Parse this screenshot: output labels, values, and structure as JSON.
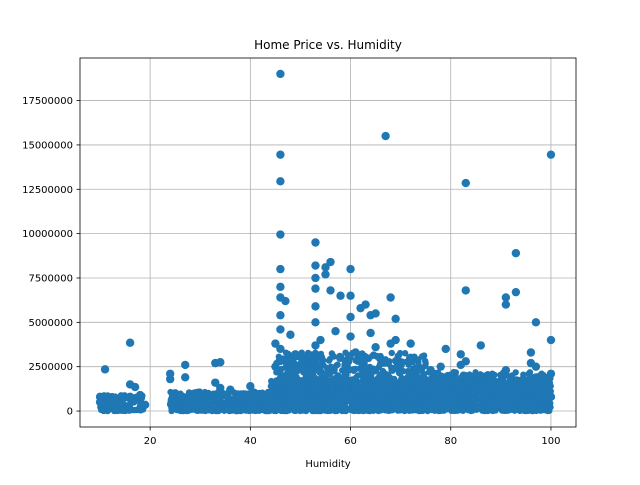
{
  "chart_data": {
    "type": "scatter",
    "title": "Home Price vs. Humidity",
    "xlabel": "Humidity",
    "ylabel": "",
    "xlim": [
      6,
      105
    ],
    "ylim": [
      -900000,
      19900000
    ],
    "xticks": [
      20,
      40,
      60,
      80,
      100
    ],
    "yticks": [
      0,
      2500000,
      5000000,
      7500000,
      10000000,
      12500000,
      15000000,
      17500000
    ],
    "xtick_labels": [
      "20",
      "40",
      "60",
      "80",
      "100"
    ],
    "ytick_labels": [
      "0",
      "2500000",
      "5000000",
      "7500000",
      "10000000",
      "12500000",
      "15000000",
      "17500000"
    ],
    "grid": true,
    "marker_color": "#1f77b4",
    "series": [
      {
        "x": [
          10,
          10,
          11,
          11,
          12,
          13,
          13,
          16,
          16,
          16,
          17,
          18,
          19,
          24,
          24,
          25,
          26,
          27,
          27,
          28,
          29,
          30,
          33,
          33,
          34,
          34,
          35,
          36,
          37,
          38,
          40,
          42,
          44,
          45,
          45,
          46,
          46,
          46,
          46,
          46,
          46,
          46,
          46,
          46,
          46,
          46,
          47,
          47,
          48,
          48,
          49,
          49,
          50,
          51,
          52,
          53,
          53,
          53,
          53,
          53,
          53,
          53,
          54,
          54,
          55,
          55,
          56,
          56,
          57,
          57,
          58,
          58,
          59,
          59,
          60,
          60,
          60,
          60,
          61,
          61,
          62,
          62,
          63,
          63,
          64,
          64,
          65,
          65,
          66,
          67,
          67,
          68,
          68,
          68,
          69,
          69,
          70,
          71,
          72,
          72,
          73,
          74,
          75,
          76,
          77,
          78,
          78,
          79,
          80,
          81,
          82,
          82,
          83,
          83,
          83,
          84,
          84,
          85,
          86,
          86,
          87,
          88,
          89,
          90,
          90,
          91,
          91,
          91,
          92,
          92,
          93,
          93,
          94,
          95,
          96,
          96,
          96,
          97,
          97,
          98,
          99,
          100,
          100,
          100,
          100
        ],
        "y": [
          800000,
          500000,
          2350000,
          400000,
          600000,
          300000,
          550000,
          3850000,
          1500000,
          800000,
          1350000,
          900000,
          350000,
          1800000,
          2100000,
          1000000,
          800000,
          2600000,
          1900000,
          600000,
          1000000,
          500000,
          2700000,
          1600000,
          2750000,
          1300000,
          900000,
          1200000,
          700000,
          600000,
          1400000,
          800000,
          1000000,
          3800000,
          2500000,
          19000000,
          14450000,
          12950000,
          9950000,
          8000000,
          7000000,
          6400000,
          5400000,
          4600000,
          3500000,
          1500000,
          6200000,
          2800000,
          4300000,
          2000000,
          3200000,
          1000000,
          2500000,
          2900000,
          3100000,
          9500000,
          8200000,
          7500000,
          6900000,
          5900000,
          5000000,
          3700000,
          4000000,
          2200000,
          8100000,
          7700000,
          8400000,
          6800000,
          4500000,
          1800000,
          6500000,
          3000000,
          2600000,
          1200000,
          8000000,
          6500000,
          5300000,
          4200000,
          3300000,
          1500000,
          3000000,
          5800000,
          6000000,
          2400000,
          5400000,
          4400000,
          5500000,
          3600000,
          2000000,
          2800000,
          15500000,
          6400000,
          3800000,
          1600000,
          5200000,
          4000000,
          2600000,
          1200000,
          3000000,
          3800000,
          2400000,
          1800000,
          1300000,
          2300000,
          1000000,
          2500000,
          1500000,
          3500000,
          2000000,
          1700000,
          2600000,
          3200000,
          12850000,
          6800000,
          2800000,
          1900000,
          1000000,
          1500000,
          3700000,
          1200000,
          900000,
          1800000,
          1100000,
          1500000,
          700000,
          6400000,
          6000000,
          2300000,
          1700000,
          1000000,
          8900000,
          6700000,
          1500000,
          1300000,
          3300000,
          2700000,
          1500000,
          5000000,
          2500000,
          1200000,
          1800000,
          14450000,
          4000000,
          2100000,
          800000
        ]
      }
    ]
  }
}
